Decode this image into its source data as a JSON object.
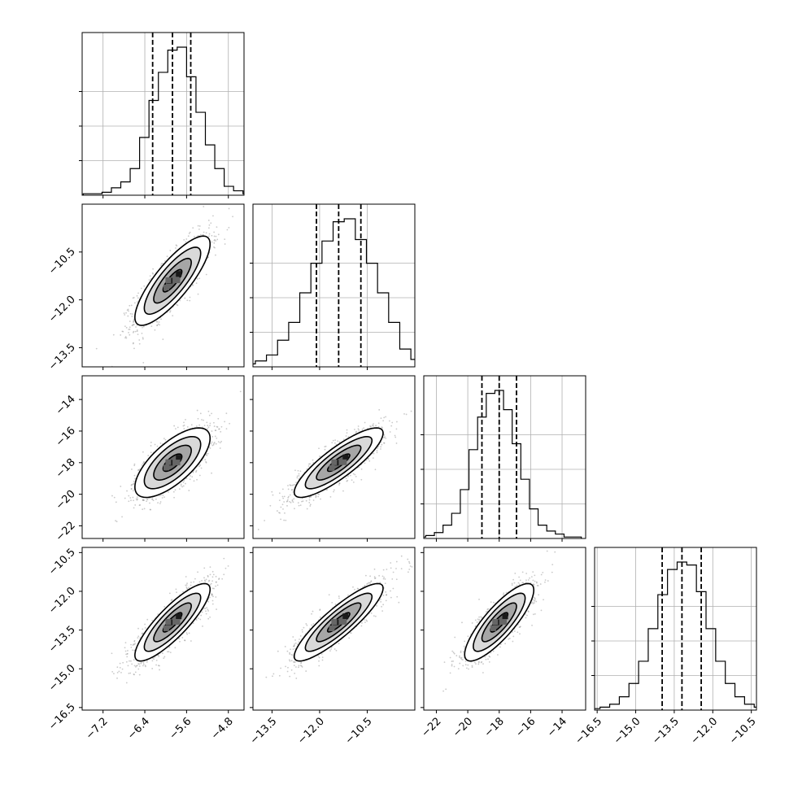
{
  "chart_data": {
    "type": "corner",
    "description": "Triangular corner plot of 4 parameters: 1-D marginal histograms on the diagonal (with dashed 16/50/84 percentile lines) and 2-D scatter + density contours below the diagonal.",
    "grid": true,
    "parameters": [
      {
        "range": [
          -7.6,
          -4.5
        ],
        "ticks": [
          -7.2,
          -6.4,
          -5.6,
          -4.8
        ],
        "tick_labels": [
          "−7.2",
          "−6.4",
          "−5.6",
          "−4.8"
        ],
        "median": -5.87,
        "sigma": 0.36,
        "quantiles": [
          -6.25,
          -5.87,
          -5.52
        ],
        "hist_rel_heights": [
          0.01,
          0.01,
          0.02,
          0.05,
          0.09,
          0.18,
          0.39,
          0.64,
          0.83,
          0.98,
          1.0,
          0.8,
          0.56,
          0.34,
          0.18,
          0.06,
          0.03,
          0.01,
          0.005
        ]
      },
      {
        "range": [
          -14.1,
          -9.0
        ],
        "ticks": [
          -13.5,
          -12.0,
          -10.5
        ],
        "tick_labels": [
          "−13.5",
          "−12.0",
          "−10.5"
        ],
        "median": -11.4,
        "sigma": 0.7,
        "quantiles": [
          -12.1,
          -11.4,
          -10.7
        ],
        "hist_rel_heights": [
          0.005,
          0.02,
          0.04,
          0.08,
          0.18,
          0.3,
          0.5,
          0.7,
          0.85,
          0.98,
          1.0,
          0.86,
          0.7,
          0.5,
          0.3,
          0.12,
          0.05,
          0.02,
          0.01
        ]
      },
      {
        "range": [
          -22.8,
          -12.5
        ],
        "ticks": [
          -22,
          -20,
          -18,
          -16,
          -14
        ],
        "tick_labels": [
          "−22",
          "−20",
          "−18",
          "−16",
          "−14"
        ],
        "median": -18.0,
        "sigma": 1.1,
        "quantiles": [
          -19.1,
          -18.0,
          -16.9
        ],
        "hist_rel_heights": [
          0.01,
          0.02,
          0.04,
          0.09,
          0.17,
          0.33,
          0.6,
          0.82,
          0.98,
          1.0,
          0.87,
          0.64,
          0.4,
          0.2,
          0.09,
          0.05,
          0.03,
          0.01,
          0.01
        ]
      },
      {
        "range": [
          -16.6,
          -10.3
        ],
        "ticks": [
          -16.5,
          -15.0,
          -13.5,
          -12.0,
          -10.5
        ],
        "tick_labels": [
          "−16.5",
          "−15.0",
          "−13.5",
          "−12.0",
          "−10.5"
        ],
        "median": -13.2,
        "sigma": 0.75,
        "quantiles": [
          -13.97,
          -13.2,
          -12.45
        ],
        "hist_rel_heights": [
          0.01,
          0.02,
          0.04,
          0.09,
          0.18,
          0.33,
          0.55,
          0.78,
          0.95,
          1.0,
          0.98,
          0.8,
          0.55,
          0.33,
          0.18,
          0.09,
          0.04,
          0.02,
          0.01
        ]
      }
    ],
    "correlations": [
      {
        "x": 0,
        "y": 1,
        "rho": 0.82
      },
      {
        "x": 0,
        "y": 2,
        "rho": 0.7
      },
      {
        "x": 1,
        "y": 2,
        "rho": 0.85
      },
      {
        "x": 0,
        "y": 3,
        "rho": 0.85
      },
      {
        "x": 1,
        "y": 3,
        "rho": 0.88
      },
      {
        "x": 2,
        "y": 3,
        "rho": 0.83
      }
    ],
    "contour_levels": [
      0.118,
      0.393,
      0.675,
      0.865
    ],
    "colors": {
      "line": "#000000",
      "grid": "#b0b0b0",
      "points": "#8a8a8a",
      "fill": [
        "#ffffff",
        "#d9d9d9",
        "#a6a6a6",
        "#666666",
        "#1a1a1a"
      ]
    }
  }
}
